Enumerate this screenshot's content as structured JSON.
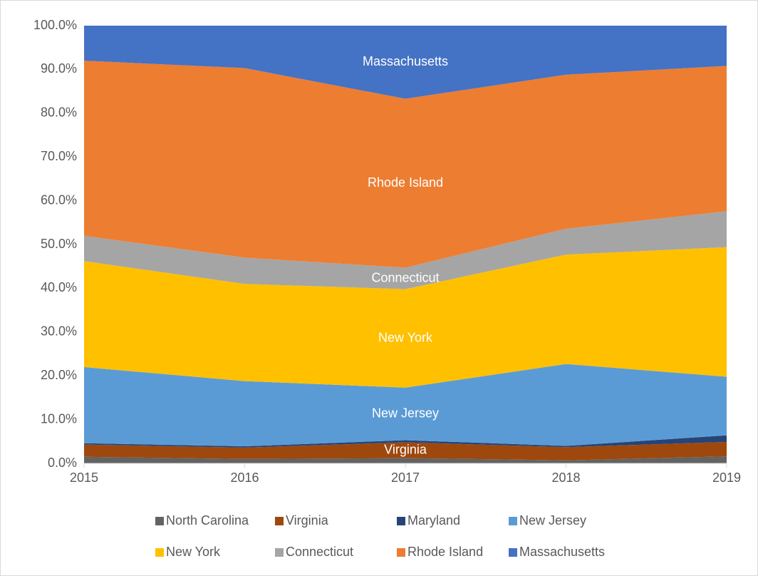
{
  "chart_data": {
    "type": "stacked_area",
    "x": [
      2015,
      2016,
      2017,
      2018,
      2019
    ],
    "xlim": [
      2015,
      2019
    ],
    "xticks": [
      2015,
      2016,
      2017,
      2018,
      2019
    ],
    "ylim": [
      0,
      100
    ],
    "yticks": [
      {
        "value": 0,
        "label": "0.0%"
      },
      {
        "value": 10,
        "label": "10.0%"
      },
      {
        "value": 20,
        "label": "20.0%"
      },
      {
        "value": 30,
        "label": "30.0%"
      },
      {
        "value": 40,
        "label": "40.0%"
      },
      {
        "value": 50,
        "label": "50.0%"
      },
      {
        "value": 60,
        "label": "60.0%"
      },
      {
        "value": 70,
        "label": "70.0%"
      },
      {
        "value": 80,
        "label": "80.0%"
      },
      {
        "value": 90,
        "label": "90.0%"
      },
      {
        "value": 100,
        "label": "100.0%"
      }
    ],
    "grid": false,
    "legend": "bottom",
    "series": [
      {
        "name": "North Carolina",
        "color": "#636363",
        "values": [
          1.5,
          1.0,
          1.2,
          0.7,
          1.6
        ]
      },
      {
        "name": "Virginia",
        "color": "#9e480e",
        "values": [
          2.8,
          2.6,
          3.6,
          3.0,
          3.3
        ],
        "label": true
      },
      {
        "name": "Maryland",
        "color": "#264478",
        "values": [
          0.3,
          0.3,
          0.5,
          0.3,
          1.5
        ]
      },
      {
        "name": "New Jersey",
        "color": "#5b9bd5",
        "values": [
          17.4,
          14.9,
          12.0,
          18.7,
          13.4
        ],
        "label": true
      },
      {
        "name": "New York",
        "color": "#ffc000",
        "values": [
          24.2,
          22.2,
          22.5,
          25.0,
          29.6
        ],
        "label": true
      },
      {
        "name": "Connecticut",
        "color": "#a5a5a5",
        "values": [
          5.8,
          6.0,
          4.9,
          5.9,
          8.2
        ],
        "label": true
      },
      {
        "name": "Rhode Island",
        "color": "#ed7d31",
        "values": [
          40.0,
          43.3,
          38.6,
          35.2,
          33.2
        ],
        "label": true
      },
      {
        "name": "Massachusetts",
        "color": "#4472c4",
        "values": [
          8.0,
          9.7,
          16.7,
          11.2,
          9.2
        ],
        "label": true
      }
    ]
  }
}
